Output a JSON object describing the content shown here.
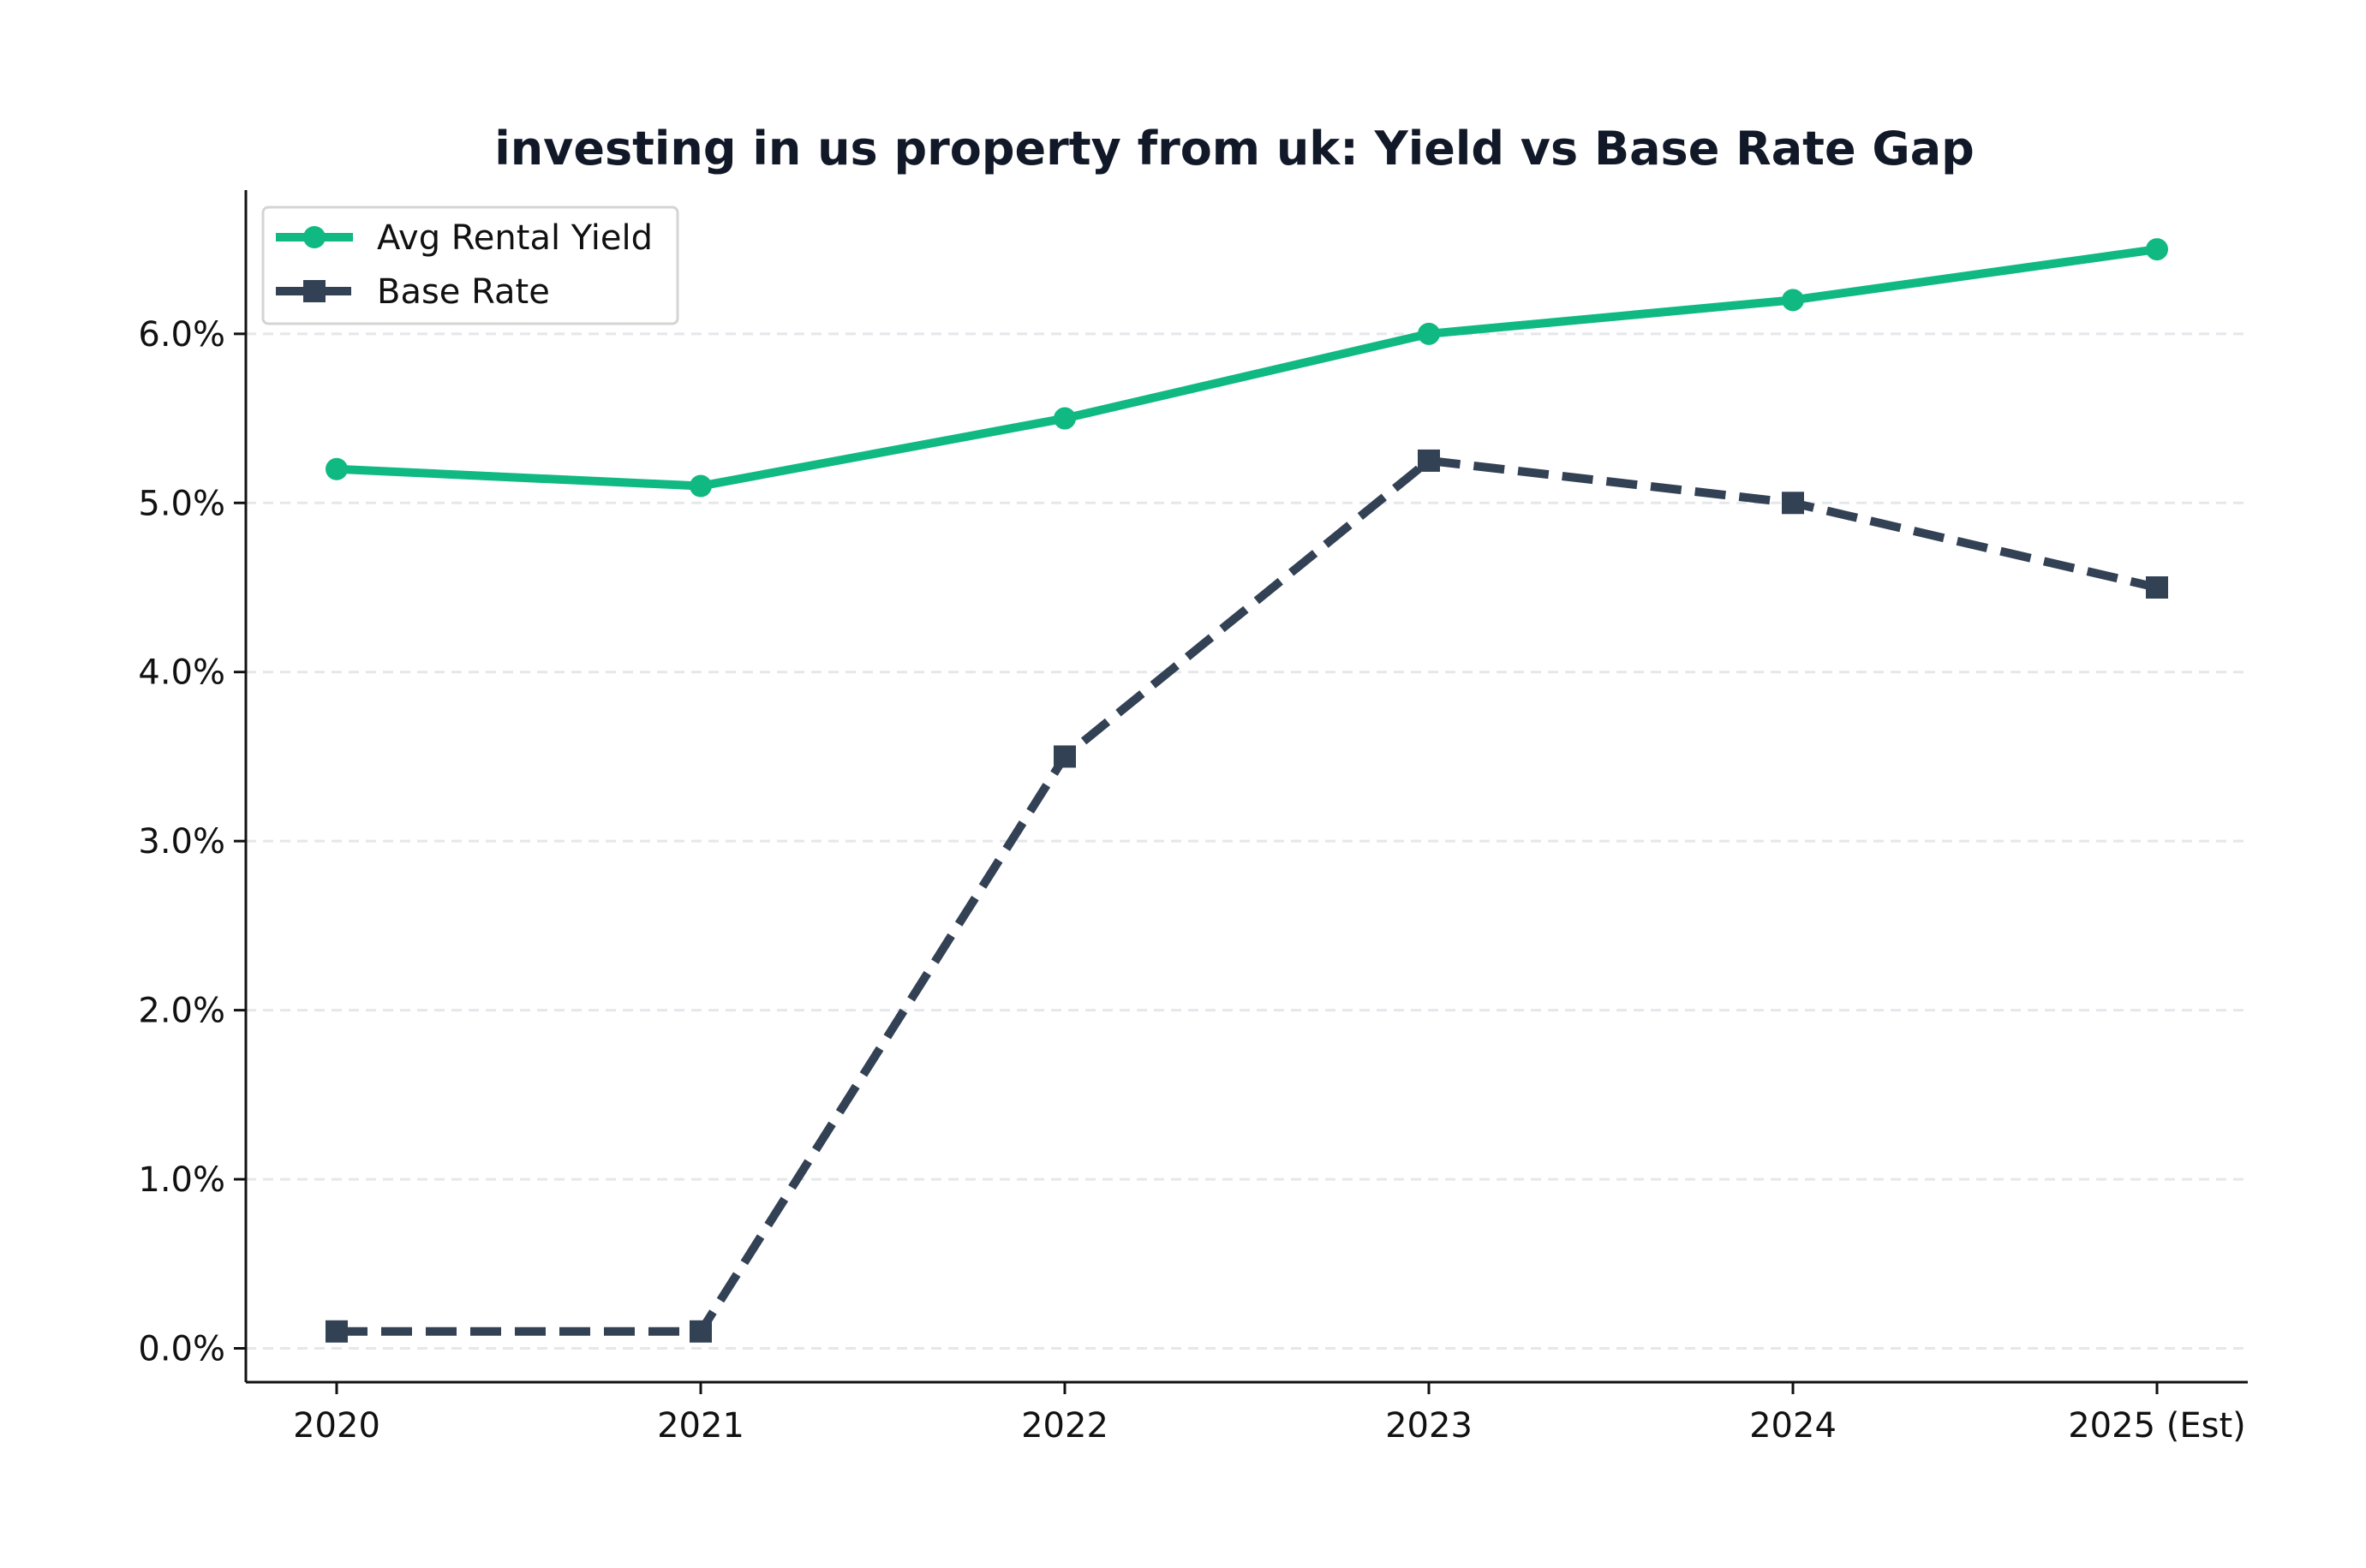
{
  "chart_data": {
    "type": "line",
    "title": "investing in us property from uk: Yield vs Base Rate Gap",
    "xlabel": "",
    "ylabel": "",
    "categories": [
      "2020",
      "2021",
      "2022",
      "2023",
      "2024",
      "2025 (Est)"
    ],
    "ylim": [
      -0.2,
      6.85
    ],
    "yticks": [
      0,
      1,
      2,
      3,
      4,
      5,
      6
    ],
    "ytick_labels": [
      "0.0%",
      "1.0%",
      "2.0%",
      "3.0%",
      "4.0%",
      "5.0%",
      "6.0%"
    ],
    "grid": "horizontal dashed",
    "legend_position": "top-left",
    "series": [
      {
        "name": "Avg Rental Yield",
        "values": [
          5.2,
          5.1,
          5.5,
          6.0,
          6.2,
          6.5
        ],
        "color": "#10b981",
        "style": "solid",
        "marker": "circle"
      },
      {
        "name": "Base Rate",
        "values": [
          0.1,
          0.1,
          3.5,
          5.25,
          5.0,
          4.5
        ],
        "color": "#334155",
        "style": "dashed",
        "marker": "square"
      }
    ]
  }
}
